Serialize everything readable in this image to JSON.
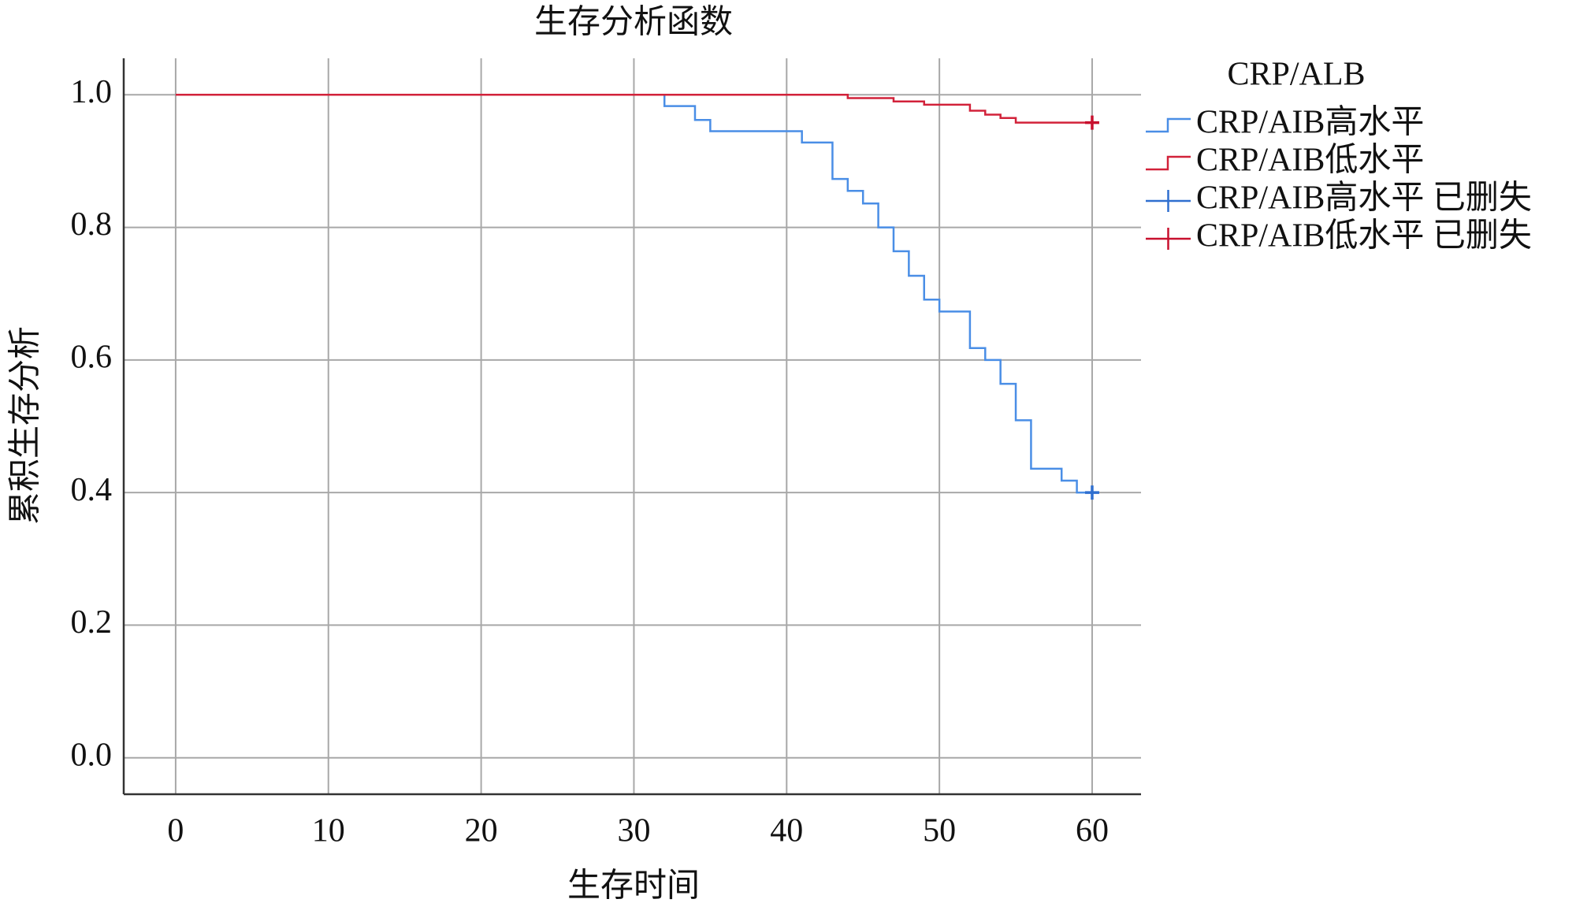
{
  "chart_data": {
    "type": "step",
    "title": "生存分析函数",
    "x_label": "生存时间",
    "y_label": "累积生存分析",
    "legend_title": "CRP/ALB",
    "legend_position": "right",
    "grid": true,
    "xlim": [
      -3.4,
      63.2
    ],
    "ylim": [
      -0.055,
      1.055
    ],
    "xticks": [
      0,
      10,
      20,
      30,
      40,
      50,
      60
    ],
    "yticks": [
      {
        "value": 0,
        "label": "0.0"
      },
      0.2,
      0.4,
      0.6,
      0.8,
      {
        "value": 1,
        "label": "1.0"
      }
    ],
    "series": [
      {
        "name": "CRP/AIB高水平",
        "color": "#4a8ee6",
        "x": [
          0,
          32,
          34,
          35,
          41,
          43,
          44,
          45,
          46,
          47,
          48,
          49,
          50,
          52,
          53,
          54,
          55,
          56,
          58,
          59,
          60
        ],
        "values": [
          1.0,
          0.983,
          0.962,
          0.945,
          0.928,
          0.873,
          0.855,
          0.836,
          0.8,
          0.764,
          0.727,
          0.691,
          0.673,
          0.618,
          0.6,
          0.564,
          0.509,
          0.436,
          0.418,
          0.4,
          0.4
        ]
      },
      {
        "name": "CRP/AIB低水平",
        "color": "#d2223a",
        "x": [
          0,
          44,
          47,
          49,
          52,
          53,
          54,
          55,
          60
        ],
        "values": [
          1.0,
          0.995,
          0.99,
          0.985,
          0.976,
          0.97,
          0.965,
          0.958,
          0.958
        ]
      }
    ],
    "censored": [
      {
        "name": "CRP/AIB高水平 已删失",
        "color": "#2f6fcf",
        "x": [
          60
        ],
        "values": [
          0.4
        ]
      },
      {
        "name": "CRP/AIB低水平 已删失",
        "color": "#c8102e",
        "x": [
          60
        ],
        "values": [
          0.958
        ]
      }
    ]
  }
}
